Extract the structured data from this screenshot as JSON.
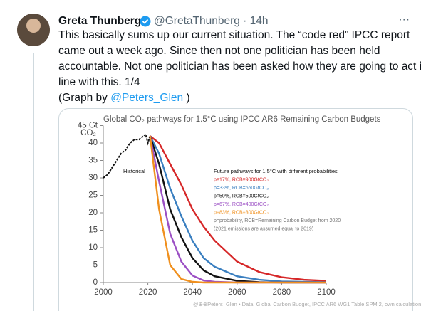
{
  "tweet": {
    "name": "Greta Thunberg",
    "meta": "@GretaThunberg · 14h",
    "menu": "···",
    "lines": [
      "This basically sums up our current situation. The “code red” IPCC report",
      "came out a week ago. Since then not one politician has been held",
      "accountable. Not one politician has been asked how they are going to act in",
      "line with this. 1/4"
    ],
    "credit_prefix": "(Graph by ",
    "credit_link": "@Peters_Glen",
    "credit_suffix": " )"
  },
  "chart_data": {
    "type": "line",
    "title": "Global CO₂ pathways for 1.5°C using IPCC AR6 Remaining Carbon Budgets",
    "y_label": "CO₂",
    "xlim": [
      2000,
      2100
    ],
    "ylim": [
      0,
      45
    ],
    "xticks": [
      2000,
      2020,
      2040,
      2060,
      2080,
      2100
    ],
    "yticks": [
      0,
      5,
      10,
      15,
      20,
      25,
      30,
      35,
      40,
      {
        "value": 45,
        "label": "45 Gt"
      }
    ],
    "annotation": "Historical",
    "legend_title": "Future pathways for 1.5°C with different probabilities",
    "notes": [
      "p=probability, RCB=Remaining Carbon Budget from 2020",
      "(2021 emissions are assumed equal to 2019)"
    ],
    "footer": "@⊕⊕Peters_Glen  •  Data: Global Carbon Budget, IPCC AR6 WG1 Table SPM.2, own calculations",
    "series": [
      {
        "name": "Historical",
        "color": "#111111",
        "x": [
          2000,
          2002,
          2004,
          2006,
          2008,
          2010,
          2012,
          2014,
          2016,
          2018,
          2019,
          2020,
          2021
        ],
        "values": [
          30,
          31,
          33,
          35,
          37,
          38,
          40,
          41,
          41,
          42,
          42.5,
          40,
          42
        ]
      },
      {
        "name": "p=17%, RCB=900GtCO₂",
        "color": "#d62728",
        "x": [
          2021,
          2025,
          2030,
          2035,
          2040,
          2045,
          2050,
          2060,
          2070,
          2080,
          2090,
          2100
        ],
        "values": [
          42,
          40,
          34,
          28,
          21,
          16,
          12,
          6,
          3,
          1.5,
          0.8,
          0.5
        ]
      },
      {
        "name": "p=33%, RCB=650GtCO₂",
        "color": "#3a7fc0",
        "x": [
          2021,
          2025,
          2030,
          2035,
          2040,
          2045,
          2050,
          2060,
          2070,
          2080,
          2090,
          2100
        ],
        "values": [
          42,
          37,
          27,
          19,
          12,
          7,
          4.5,
          1.8,
          0.8,
          0.3,
          0.2,
          0.1
        ]
      },
      {
        "name": "p=50%, RCB=500GtCO₂",
        "color": "#111111",
        "x": [
          2021,
          2025,
          2030,
          2035,
          2040,
          2045,
          2050,
          2060,
          2070,
          2080,
          2090,
          2100
        ],
        "values": [
          42,
          34,
          21,
          13,
          7,
          3.5,
          1.8,
          0.5,
          0.1,
          0,
          0,
          0
        ]
      },
      {
        "name": "p=67%, RCB=400GtCO₂",
        "color": "#9b4fc4",
        "x": [
          2021,
          2025,
          2030,
          2035,
          2040,
          2045,
          2050,
          2060,
          2070,
          2080,
          2090,
          2100
        ],
        "values": [
          42,
          29,
          14,
          6,
          2,
          0.6,
          0.2,
          0,
          0,
          0,
          0,
          0
        ]
      },
      {
        "name": "p=83%, RCB=300GtCO₂",
        "color": "#f0901e",
        "x": [
          2021,
          2025,
          2030,
          2035,
          2040,
          2045,
          2050,
          2060,
          2070,
          2080,
          2090,
          2100
        ],
        "values": [
          42,
          21,
          5,
          1,
          0.2,
          0,
          0,
          0,
          0,
          0,
          0,
          0
        ]
      }
    ]
  }
}
